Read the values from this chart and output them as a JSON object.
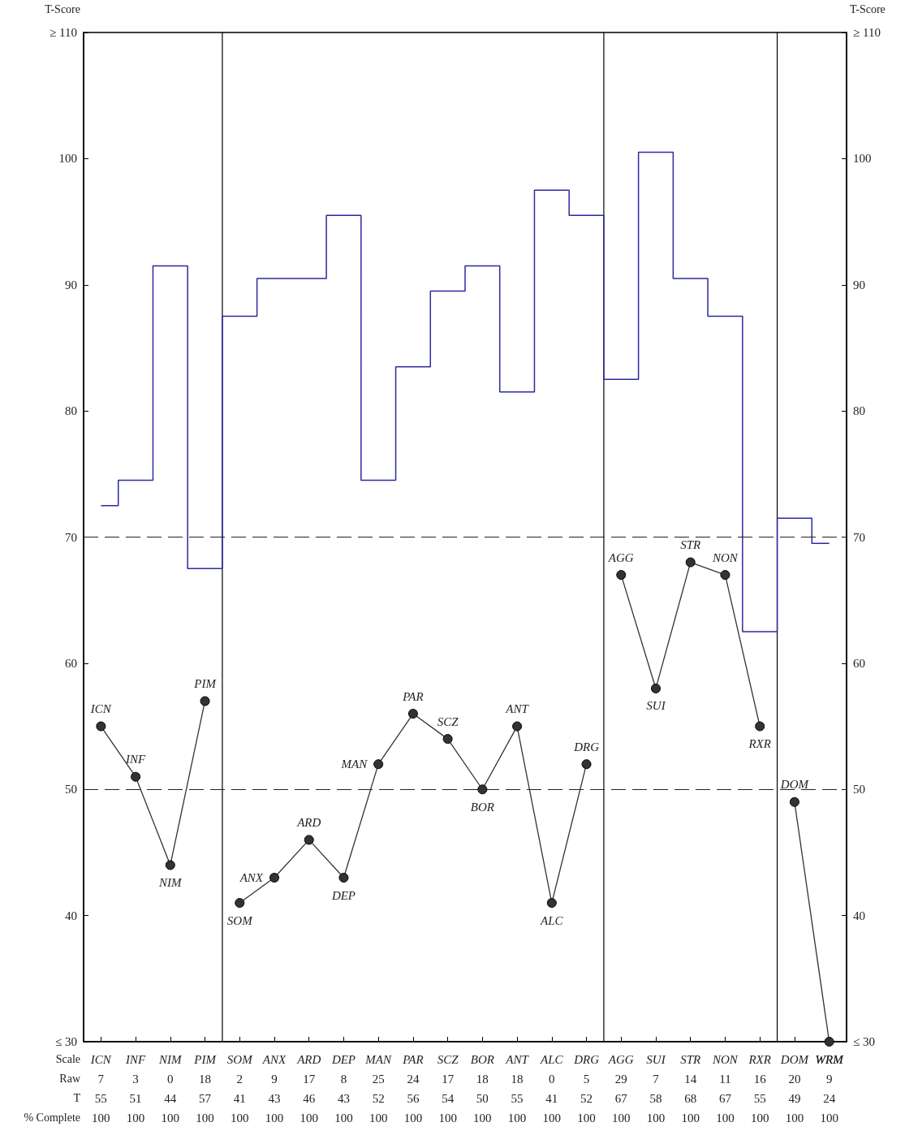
{
  "chart_data": {
    "type": "line",
    "ylabel": "T-Score",
    "y2label": "T-Score",
    "categories": [
      "ICN",
      "INF",
      "NIM",
      "PIM",
      "SOM",
      "ANX",
      "ARD",
      "DEP",
      "MAN",
      "PAR",
      "SCZ",
      "BOR",
      "ANT",
      "ALC",
      "DRG",
      "AGG",
      "SUI",
      "STR",
      "NON",
      "RXR",
      "DOM",
      "WRM"
    ],
    "series": [
      {
        "type": "step",
        "color": "#2b2ba0",
        "marker": "none",
        "values": [
          72.5,
          74.5,
          91.5,
          67.5,
          87.5,
          90.5,
          90.5,
          95.5,
          74.5,
          83.5,
          89.5,
          91.5,
          81.5,
          97.5,
          95.5,
          82.5,
          100.5,
          90.5,
          87.5,
          62.5,
          71.5,
          69.5
        ]
      },
      {
        "color": "#333333",
        "x": [
          "ICN",
          "INF",
          "NIM",
          "PIM"
        ],
        "values": [
          55,
          51,
          44,
          57
        ]
      },
      {
        "color": "#333333",
        "x": [
          "SOM",
          "ANX",
          "ARD",
          "DEP",
          "MAN",
          "PAR",
          "SCZ",
          "BOR",
          "ANT",
          "ALC",
          "DRG"
        ],
        "values": [
          41,
          43,
          46,
          43,
          52,
          56,
          54,
          50,
          55,
          41,
          52
        ]
      },
      {
        "color": "#333333",
        "x": [
          "AGG",
          "SUI",
          "STR",
          "NON",
          "RXR"
        ],
        "values": [
          67,
          58,
          68,
          67,
          55
        ]
      },
      {
        "color": "#333333",
        "x": [
          "DOM",
          "WRM"
        ],
        "values": [
          49,
          30
        ]
      }
    ],
    "ylim": [
      30,
      110
    ],
    "yticks": [
      {
        "value": 30,
        "label": "≤ 30"
      },
      40,
      50,
      60,
      70,
      80,
      90,
      100,
      {
        "value": 110,
        "label": "≥ 110"
      }
    ],
    "y2lim": [
      30,
      110
    ],
    "y2ticks": [
      {
        "value": 30,
        "label": "≤ 30"
      },
      40,
      50,
      60,
      70,
      80,
      90,
      100,
      {
        "value": 110,
        "label": "≥ 110"
      }
    ],
    "ref_lines": [
      {
        "axis": "y",
        "value": 70,
        "color": "#222222",
        "line_style": "dashed"
      },
      {
        "axis": "y",
        "value": 50,
        "color": "#222222",
        "line_style": "dashed"
      }
    ],
    "marker": "circle",
    "grid": false,
    "annotations": [
      "Scale",
      "Raw",
      "7 3 0 18 2 9 17 8 25 24 17 18 18 0 5 29 7 14 11 16 20 9",
      "T",
      "55 51 44 57 41 43 46 43 52 56 54 50 55 41 52 67 58 68 67 55 49 24",
      "% Complete",
      "100 100 100 100 100 100 100 100 100 100 100 100 100 100 100 100 100 100 100 100 100 100"
    ]
  }
}
